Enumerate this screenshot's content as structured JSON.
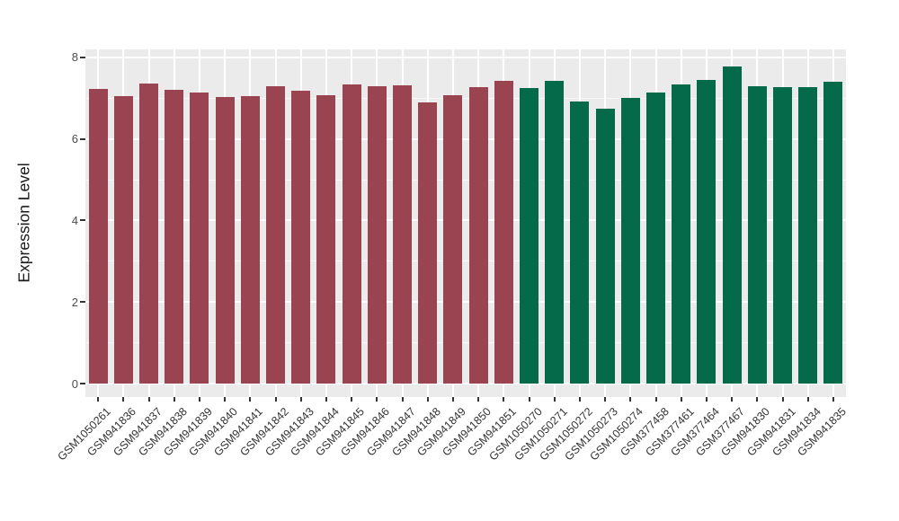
{
  "chart_data": {
    "type": "bar",
    "title": "",
    "xlabel": "",
    "ylabel": "Expression Level",
    "ylim": [
      0,
      8
    ],
    "yticks_major": [
      0,
      2,
      4,
      6,
      8
    ],
    "yticks_minor": [
      1,
      3,
      5,
      7
    ],
    "grid": true,
    "legend_position": "none",
    "panel_background": "#ebebeb",
    "gridline_color": "#ffffff",
    "bar_colors": {
      "group1": "#9a4452",
      "group2": "#046a4a"
    },
    "categories": [
      "GSM1050261",
      "GSM941836",
      "GSM941837",
      "GSM941838",
      "GSM941839",
      "GSM941840",
      "GSM941841",
      "GSM941842",
      "GSM941843",
      "GSM941844",
      "GSM941845",
      "GSM941846",
      "GSM941847",
      "GSM941848",
      "GSM941849",
      "GSM941850",
      "GSM941851",
      "GSM1050270",
      "GSM1050271",
      "GSM1050272",
      "GSM1050273",
      "GSM1050274",
      "GSM377458",
      "GSM377461",
      "GSM377464",
      "GSM377467",
      "GSM941830",
      "GSM941831",
      "GSM941834",
      "GSM941835"
    ],
    "values": [
      7.22,
      7.05,
      7.36,
      7.2,
      7.14,
      7.02,
      7.05,
      7.29,
      7.17,
      7.08,
      7.34,
      7.29,
      7.32,
      6.9,
      7.07,
      7.27,
      7.42,
      7.25,
      7.42,
      6.92,
      6.74,
      7.0,
      7.13,
      7.33,
      7.45,
      7.77,
      7.29,
      7.27,
      7.27,
      7.4
    ],
    "colors": [
      "#9a4452",
      "#9a4452",
      "#9a4452",
      "#9a4452",
      "#9a4452",
      "#9a4452",
      "#9a4452",
      "#9a4452",
      "#9a4452",
      "#9a4452",
      "#9a4452",
      "#9a4452",
      "#9a4452",
      "#9a4452",
      "#9a4452",
      "#9a4452",
      "#9a4452",
      "#046a4a",
      "#046a4a",
      "#046a4a",
      "#046a4a",
      "#046a4a",
      "#046a4a",
      "#046a4a",
      "#046a4a",
      "#046a4a",
      "#046a4a",
      "#046a4a",
      "#046a4a",
      "#046a4a"
    ]
  }
}
